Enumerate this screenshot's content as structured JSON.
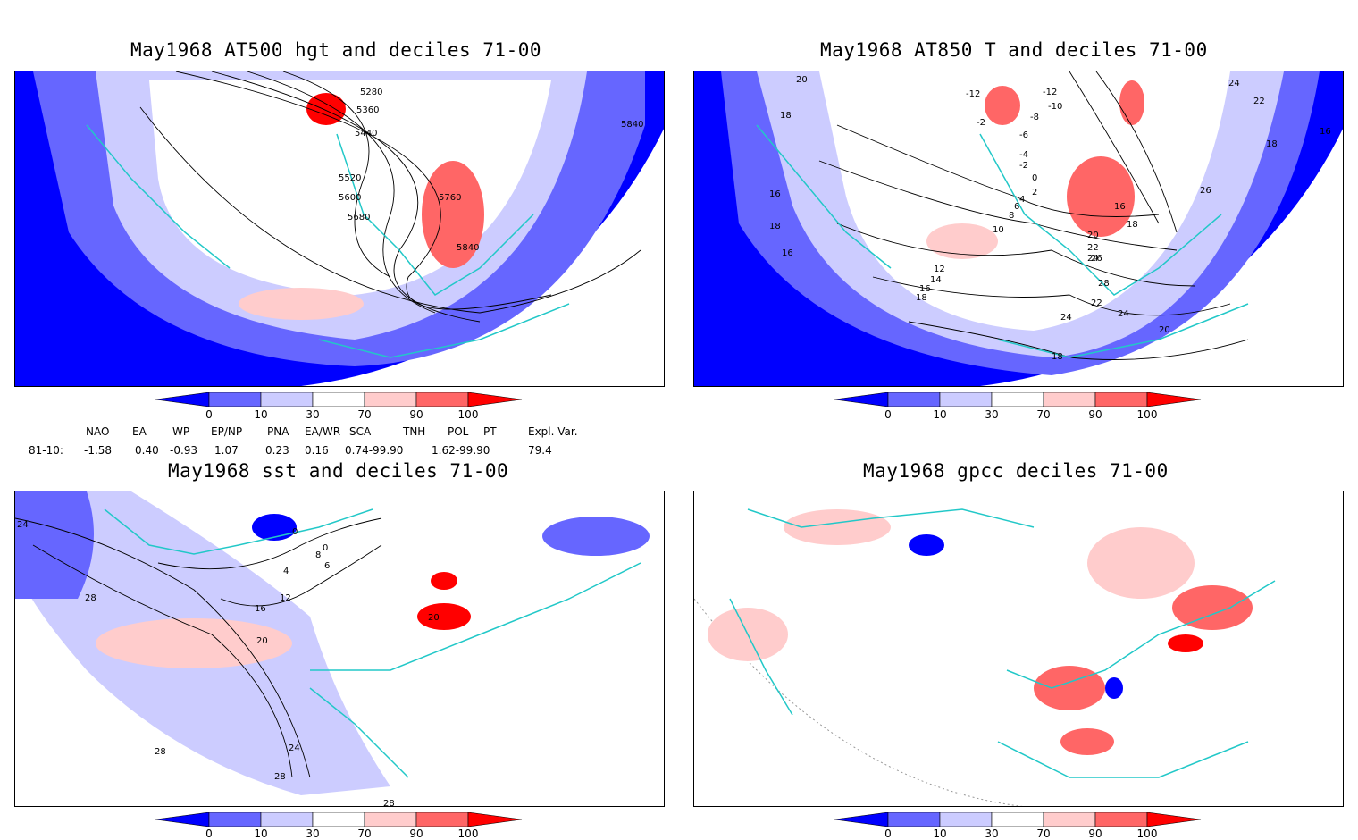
{
  "panels": [
    {
      "title": "May1968 AT500 hgt and deciles 71-00",
      "contour_labels": [
        "5280",
        "5360",
        "5440",
        "5520",
        "5600",
        "5680",
        "5760",
        "5840",
        "5840"
      ]
    },
    {
      "title": "May1968 AT850 T and deciles 71-00",
      "contour_labels": [
        "-12",
        "-12",
        "-10",
        "-8",
        "-6",
        "-4",
        "-2",
        "-2",
        "0",
        "2",
        "4",
        "6",
        "8",
        "10",
        "12",
        "14",
        "16",
        "18",
        "20",
        "22",
        "24",
        "26",
        "28",
        "16",
        "18",
        "16",
        "18",
        "16",
        "18",
        "20",
        "22",
        "24",
        "24",
        "20",
        "18",
        "26",
        "24",
        "22",
        "16",
        "18"
      ]
    },
    {
      "title": "May1968 sst and deciles 71-00",
      "contour_labels": [
        "24",
        "28",
        "0",
        "0",
        "4",
        "6",
        "8",
        "12",
        "16",
        "20",
        "20",
        "24",
        "28",
        "28",
        "28"
      ]
    },
    {
      "title": "May1968 gpcc deciles 71-00",
      "contour_labels": []
    }
  ],
  "colorbar": {
    "labels": [
      "0",
      "10",
      "30",
      "70",
      "90",
      "100"
    ],
    "colors": [
      "#0000ff",
      "#6666ff",
      "#ccccff",
      "#ffffff",
      "#ffcccc",
      "#ff6666",
      "#ff0000"
    ]
  },
  "indices": {
    "headers": [
      "NAO",
      "EA",
      "WP",
      "EP/NP",
      "PNA",
      "EA/WR",
      "SCA",
      "TNH",
      "POL",
      "PT",
      "Expl. Var."
    ],
    "row_label": "81-10:",
    "values": [
      "-1.58",
      "0.40",
      "-0.93",
      "1.07",
      "0.23",
      "0.16",
      "0.74-99.90",
      "1.62-99.90",
      "79.4"
    ]
  }
}
